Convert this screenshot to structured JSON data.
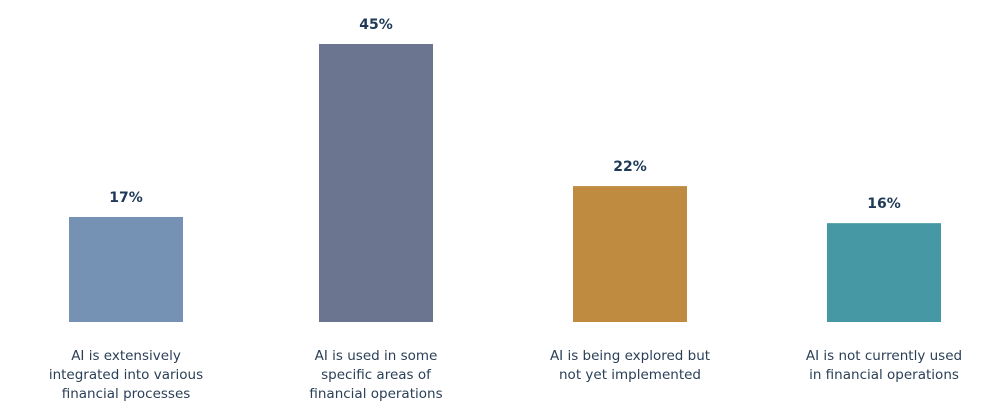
{
  "chart_data": {
    "type": "bar",
    "categories": [
      "AI is extensively integrated into various financial processes",
      "AI is used in some specific areas of financial operations",
      "AI is being explored but not yet implemented",
      "AI is not currently used in financial operations"
    ],
    "category_lines": [
      [
        "AI is extensively",
        "integrated into various",
        "financial processes"
      ],
      [
        "AI is used in some",
        "specific areas of",
        "financial operations"
      ],
      [
        "AI is being explored but",
        "not yet implemented"
      ],
      [
        "AI is not currently used",
        "in financial operations"
      ]
    ],
    "values": [
      17,
      45,
      22,
      16
    ],
    "data_labels": [
      "17%",
      "45%",
      "22%",
      "16%"
    ],
    "colors": [
      "#7591b4",
      "#6b758f",
      "#bf8b41",
      "#4698a5"
    ],
    "ylim": [
      0,
      45
    ],
    "grid": false
  }
}
